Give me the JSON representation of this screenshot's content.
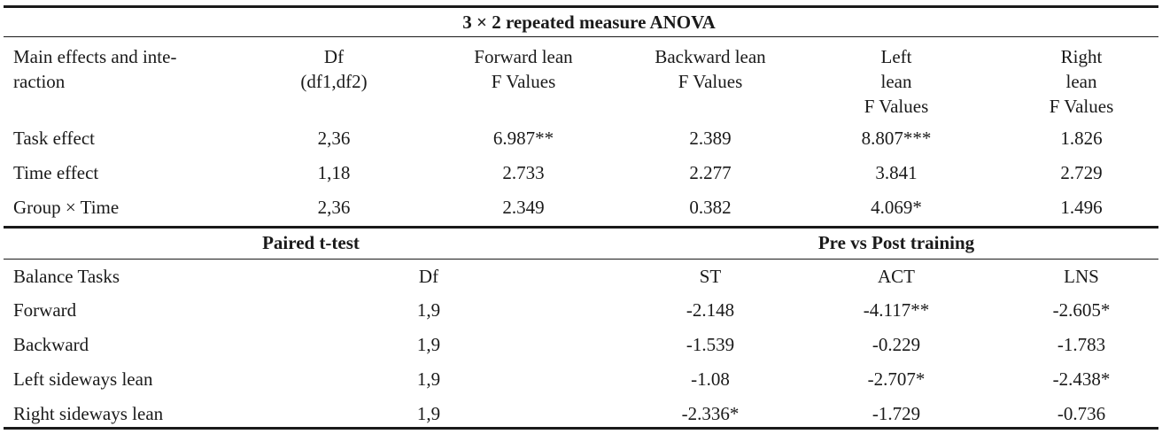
{
  "anova": {
    "title": "3 × 2 repeated measure ANOVA",
    "headers": [
      [
        "Main effects and inte-",
        "raction"
      ],
      [
        "Df",
        "(df1,df2)"
      ],
      [
        "Forward lean",
        "F Values"
      ],
      [
        "Backward lean",
        "F Values"
      ],
      [
        "Left",
        "lean",
        "F Values"
      ],
      [
        "Right",
        "lean",
        "F Values"
      ]
    ],
    "rows": [
      [
        "Task effect",
        "2,36",
        "6.987**",
        "2.389",
        "8.807***",
        "1.826"
      ],
      [
        "Time effect",
        "1,18",
        "2.733",
        "2.277",
        "3.841",
        "2.729"
      ],
      [
        "Group × Time",
        "2,36",
        "2.349",
        "0.382",
        "4.069*",
        "1.496"
      ]
    ]
  },
  "ttest": {
    "title_left": "Paired t-test",
    "title_right": "Pre vs Post training",
    "headers": [
      "Balance Tasks",
      "Df",
      "ST",
      "ACT",
      "LNS"
    ],
    "rows": [
      [
        "Forward",
        "1,9",
        "-2.148",
        "-4.117**",
        "-2.605*"
      ],
      [
        "Backward",
        "1,9",
        "-1.539",
        "-0.229",
        "-1.783"
      ],
      [
        "Left sideways lean",
        "1,9",
        "-1.08",
        "-2.707*",
        "-2.438*"
      ],
      [
        "Right sideways lean",
        "1,9",
        "-2.336*",
        "-1.729",
        "-0.736"
      ]
    ]
  }
}
